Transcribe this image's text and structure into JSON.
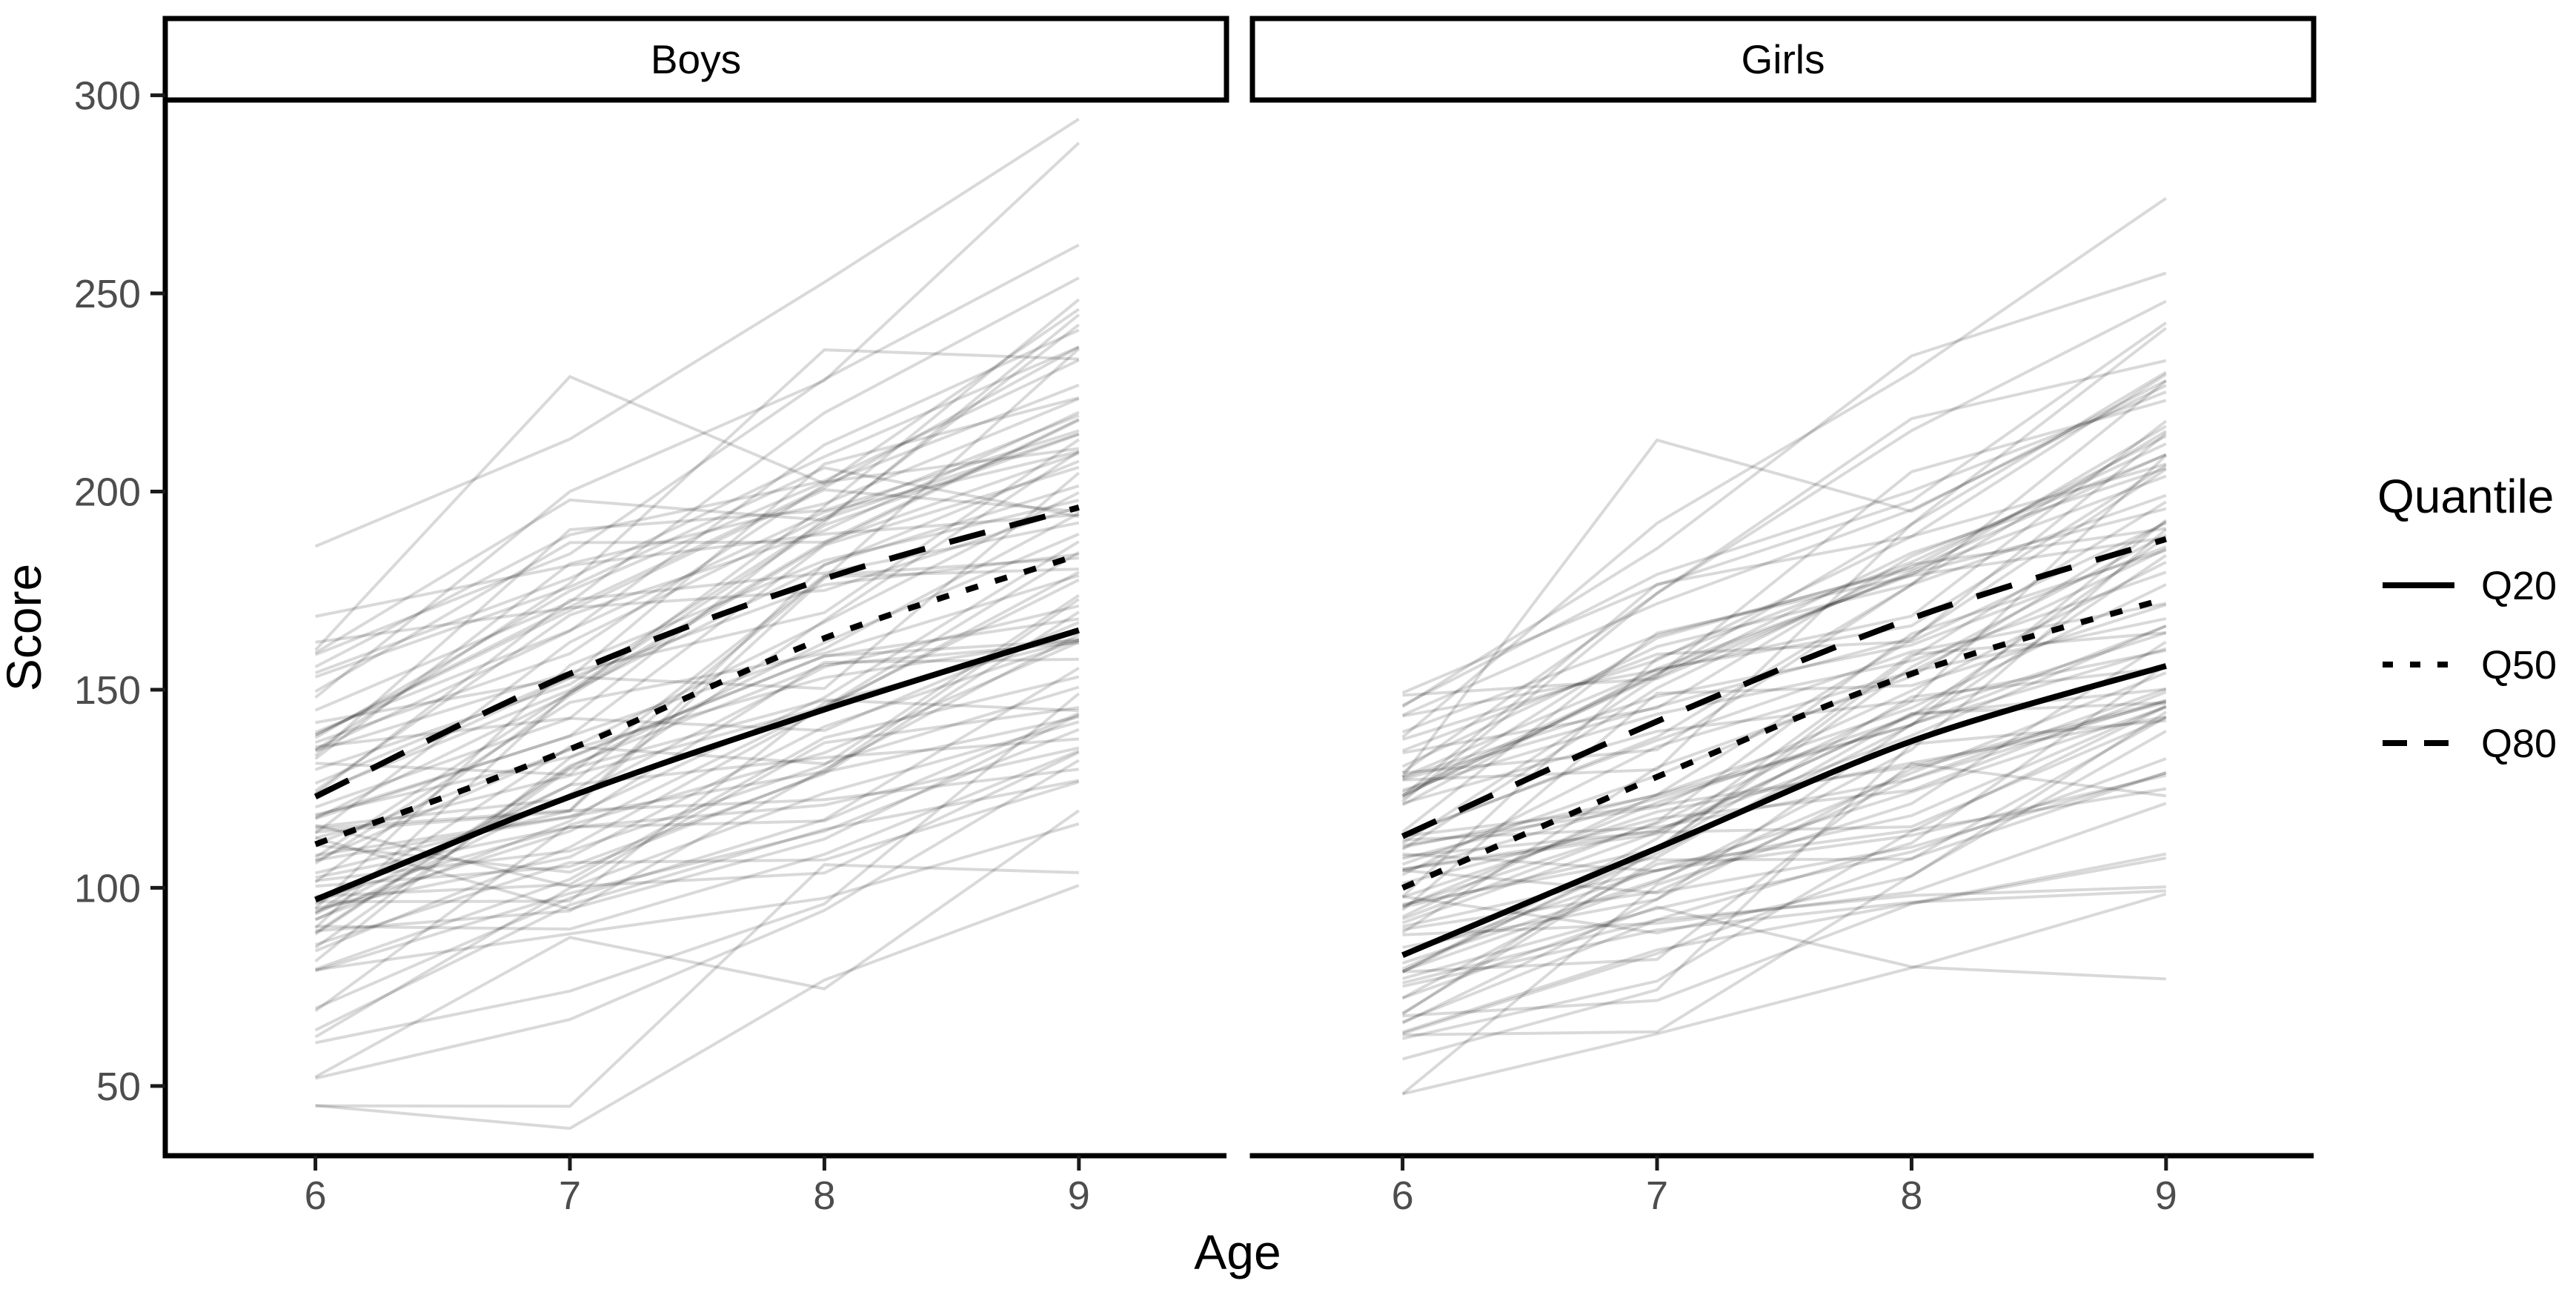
{
  "chart_data": {
    "type": "line",
    "title": "",
    "xlabel": "Age",
    "ylabel": "Score",
    "x_ticks": [
      6,
      7,
      8,
      9
    ],
    "y_ticks": [
      50,
      100,
      150,
      200,
      250,
      300
    ],
    "x_domain": [
      5.41,
      9.58
    ],
    "y_domain": [
      32.4,
      298.8
    ],
    "grid": "off",
    "legend": {
      "title": "Quantile",
      "position": "right",
      "entries": [
        {
          "label": "Q20",
          "linestyle": "solid"
        },
        {
          "label": "Q50",
          "linestyle": "dotted"
        },
        {
          "label": "Q80",
          "linestyle": "dashed"
        }
      ]
    },
    "facets": [
      {
        "label": "Boys",
        "quantile_curves": [
          {
            "name": "Q20",
            "linestyle": "solid",
            "ages": [
              6,
              7,
              8,
              9
            ],
            "scores": [
              97,
              123,
              145,
              165
            ]
          },
          {
            "name": "Q50",
            "linestyle": "dotted",
            "ages": [
              6,
              7,
              8,
              9
            ],
            "scores": [
              111,
              135,
              163,
              184
            ]
          },
          {
            "name": "Q80",
            "linestyle": "dashed",
            "ages": [
              6,
              7,
              8,
              9
            ],
            "scores": [
              123,
              154,
              178,
              196
            ]
          }
        ],
        "individual_trajectories": {
          "description": "approximately 85 faint gray per-child score trajectories with vertices at ages 6-9, procedurally approximated",
          "count": 85,
          "seed": 20,
          "start_mean": 111,
          "start_sd": 30,
          "start_min": 45,
          "start_max": 190,
          "step_mean": 24,
          "step_sd": 16,
          "min": 36,
          "max": 294,
          "featured": [
            [
              148,
              200,
              228,
              288
            ],
            [
              160,
              229,
              202,
              246
            ]
          ]
        }
      },
      {
        "label": "Girls",
        "quantile_curves": [
          {
            "name": "Q20",
            "linestyle": "solid",
            "ages": [
              6,
              7,
              8,
              9
            ],
            "scores": [
              83,
              110,
              137,
              156
            ]
          },
          {
            "name": "Q50",
            "linestyle": "dotted",
            "ages": [
              6,
              7,
              8,
              9
            ],
            "scores": [
              100,
              128,
              154,
              173
            ]
          },
          {
            "name": "Q80",
            "linestyle": "dashed",
            "ages": [
              6,
              7,
              8,
              9
            ],
            "scores": [
              113,
              142,
              168,
              188
            ]
          }
        ],
        "individual_trajectories": {
          "description": "approximately 85 faint gray per-child score trajectories with vertices at ages 6-9, procedurally approximated",
          "count": 85,
          "seed": 77,
          "start_mean": 100,
          "start_sd": 27,
          "start_min": 48,
          "start_max": 180,
          "step_mean": 24,
          "step_sd": 15,
          "min": 36,
          "max": 276,
          "featured": [
            [
              138,
              192,
              230,
              274
            ],
            [
              128,
              213,
              195,
              228
            ]
          ]
        }
      }
    ],
    "colors": {
      "curve": "#000000",
      "individual": "#000000",
      "individual_opacity": 0.15,
      "tick_label": "#4d4d4d",
      "tick_mark": "#1a1a1a",
      "axis_line": "#000000",
      "strip_fill": "#ffffff",
      "strip_border": "#000000",
      "background": "#ffffff"
    }
  }
}
